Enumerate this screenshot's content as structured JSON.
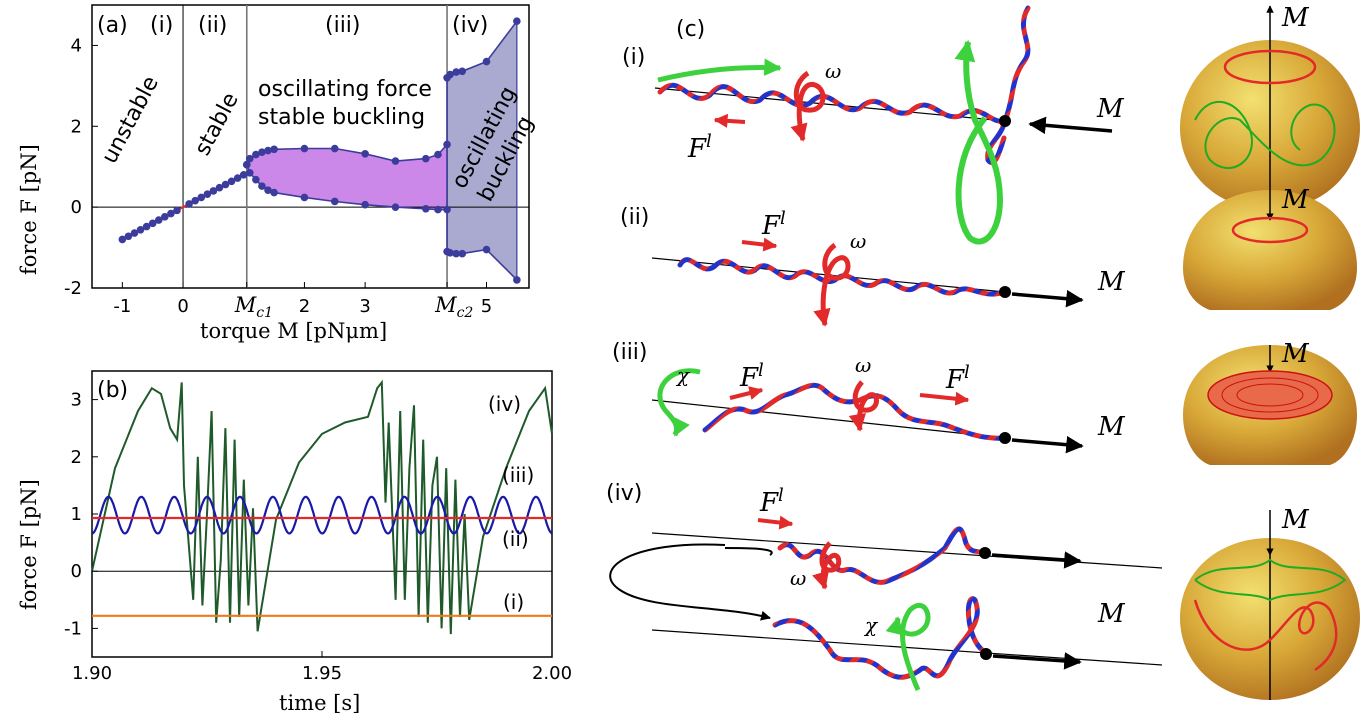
{
  "panel_a": {
    "label": "(a)",
    "regions": [
      "(i)",
      "(ii)",
      "(iii)",
      "(iv)"
    ],
    "text_unstable": "unstable",
    "text_stable": "stable",
    "text_osc_line1": "oscillating force",
    "text_osc_line2": "stable buckling",
    "text_oscb_line1": "oscillating",
    "text_oscb_line2": "buckling",
    "mc1": "M",
    "mc1_sub": "c1",
    "mc2": "M",
    "mc2_sub": "c2"
  },
  "panel_b": {
    "label": "(b)",
    "curve_labels": [
      "(i)",
      "(ii)",
      "(iii)",
      "(iv)"
    ]
  },
  "panel_c": {
    "label": "(c)",
    "row_labels": [
      "(i)",
      "(ii)",
      "(iii)",
      "(iv)"
    ],
    "m_label": "M",
    "f_label": "F",
    "f_sup": "l",
    "omega": "ω",
    "chi": "χ"
  },
  "colors": {
    "stable_fill": "#cc88e8",
    "buckling_fill": "#aaaad0",
    "dot": "#3c3c9c",
    "line_red": "#e22a2a",
    "line_blue": "#1a1aa8",
    "line_orange": "#f07a1a",
    "line_green": "#1f5a2a",
    "arrow_green": "#3ed13e",
    "sphere": "#d8a838"
  },
  "chart_data": [
    {
      "type": "scatter",
      "panel": "(a)",
      "xlabel": "torque M [pNμm]",
      "ylabel": "force F [pN]",
      "xlim": [
        -1.5,
        5.7
      ],
      "ylim": [
        -2,
        5
      ],
      "xticks": [
        -1,
        0,
        "M_c1",
        2,
        3,
        "M_c2",
        5
      ],
      "yticks": [
        -2,
        0,
        2,
        4
      ],
      "xtick_values": [
        -1,
        0,
        1.05,
        2,
        3,
        4.35,
        5
      ],
      "ytick_values": [
        -2,
        0,
        2,
        4
      ],
      "vlines": [
        0,
        1.05,
        4.35
      ],
      "series": [
        {
          "name": "(i)",
          "x": [
            -1,
            -0.9,
            -0.8,
            -0.7,
            -0.6,
            -0.5,
            -0.4,
            -0.3,
            -0.2,
            -0.1
          ],
          "y": [
            -0.8,
            -0.72,
            -0.64,
            -0.56,
            -0.48,
            -0.4,
            -0.32,
            -0.24,
            -0.16,
            -0.08
          ]
        },
        {
          "name": "(ii)",
          "x": [
            0.1,
            0.2,
            0.3,
            0.4,
            0.5,
            0.6,
            0.7,
            0.8,
            0.9,
            1.0
          ],
          "y": [
            0.08,
            0.16,
            0.24,
            0.32,
            0.4,
            0.48,
            0.56,
            0.64,
            0.72,
            0.8
          ]
        },
        {
          "name": "(iii) max",
          "x": [
            1.05,
            1.1,
            1.2,
            1.3,
            1.4,
            1.5,
            2.0,
            2.5,
            3.0,
            3.5,
            4.0,
            4.2,
            4.35
          ],
          "y": [
            1.05,
            1.2,
            1.3,
            1.36,
            1.4,
            1.43,
            1.45,
            1.45,
            1.32,
            1.14,
            1.2,
            1.3,
            1.55
          ]
        },
        {
          "name": "(iii) min",
          "x": [
            1.05,
            1.1,
            1.2,
            1.3,
            1.4,
            1.5,
            2.0,
            2.5,
            3.0,
            3.5,
            4.0,
            4.2,
            4.35
          ],
          "y": [
            1.05,
            0.85,
            0.68,
            0.52,
            0.42,
            0.36,
            0.24,
            0.14,
            0.06,
            0.0,
            -0.04,
            -0.06,
            -0.06
          ]
        },
        {
          "name": "(iv) max",
          "x": [
            4.35,
            4.4,
            4.5,
            4.6,
            5.0,
            5.5
          ],
          "y": [
            3.2,
            3.28,
            3.34,
            3.36,
            3.6,
            4.6
          ]
        },
        {
          "name": "(iv) min",
          "x": [
            4.35,
            4.4,
            4.5,
            4.6,
            5.0,
            5.5
          ],
          "y": [
            -1.1,
            -1.13,
            -1.15,
            -1.15,
            -1.05,
            -1.8
          ]
        }
      ]
    },
    {
      "type": "line",
      "panel": "(b)",
      "xlabel": "time [s]",
      "ylabel": "force F [pN]",
      "xlim": [
        1.9,
        2.0
      ],
      "ylim": [
        -1.5,
        3.5
      ],
      "xticks": [
        1.9,
        1.95,
        2.0
      ],
      "yticks": [
        -1,
        0,
        1,
        2,
        3
      ],
      "series": [
        {
          "name": "(i)",
          "constant": -0.78
        },
        {
          "name": "(ii)",
          "constant": 0.93
        },
        {
          "name": "(iii)",
          "mean": 0.98,
          "amplitude": 0.32,
          "period": 0.00715
        },
        {
          "name": "(iv)",
          "x": [
            1.9,
            1.905,
            1.91,
            1.913,
            1.915,
            1.917,
            1.9185,
            1.9195,
            1.92,
            1.921,
            1.922,
            1.923,
            1.924,
            1.925,
            1.926,
            1.927,
            1.928,
            1.929,
            1.93,
            1.931,
            1.932,
            1.933,
            1.934,
            1.935,
            1.936,
            1.94,
            1.945,
            1.95,
            1.955,
            1.96,
            1.962,
            1.963,
            1.9638,
            1.9645,
            1.966,
            1.967,
            1.968,
            1.969,
            1.97,
            1.971,
            1.972,
            1.973,
            1.974,
            1.975,
            1.976,
            1.977,
            1.978,
            1.979,
            1.98,
            1.981,
            1.982,
            1.985,
            1.99,
            1.995,
            1.9985,
            2.0
          ],
          "y": [
            0.0,
            1.8,
            2.8,
            3.2,
            3.1,
            2.5,
            2.3,
            3.3,
            1.5,
            0.5,
            -0.5,
            2.0,
            -0.6,
            1.0,
            2.8,
            -0.9,
            0.2,
            2.5,
            -0.9,
            2.3,
            -0.8,
            1.6,
            -0.6,
            1.1,
            -1.05,
            0.9,
            1.9,
            2.4,
            2.6,
            2.7,
            3.2,
            3.3,
            1.2,
            2.6,
            -0.5,
            2.8,
            -0.5,
            1.8,
            2.9,
            -0.8,
            2.3,
            -0.9,
            1.5,
            2.0,
            -1.0,
            1.8,
            -1.1,
            1.6,
            -0.8,
            1.0,
            -0.85,
            0.6,
            1.8,
            2.8,
            3.2,
            2.4
          ]
        }
      ]
    }
  ]
}
